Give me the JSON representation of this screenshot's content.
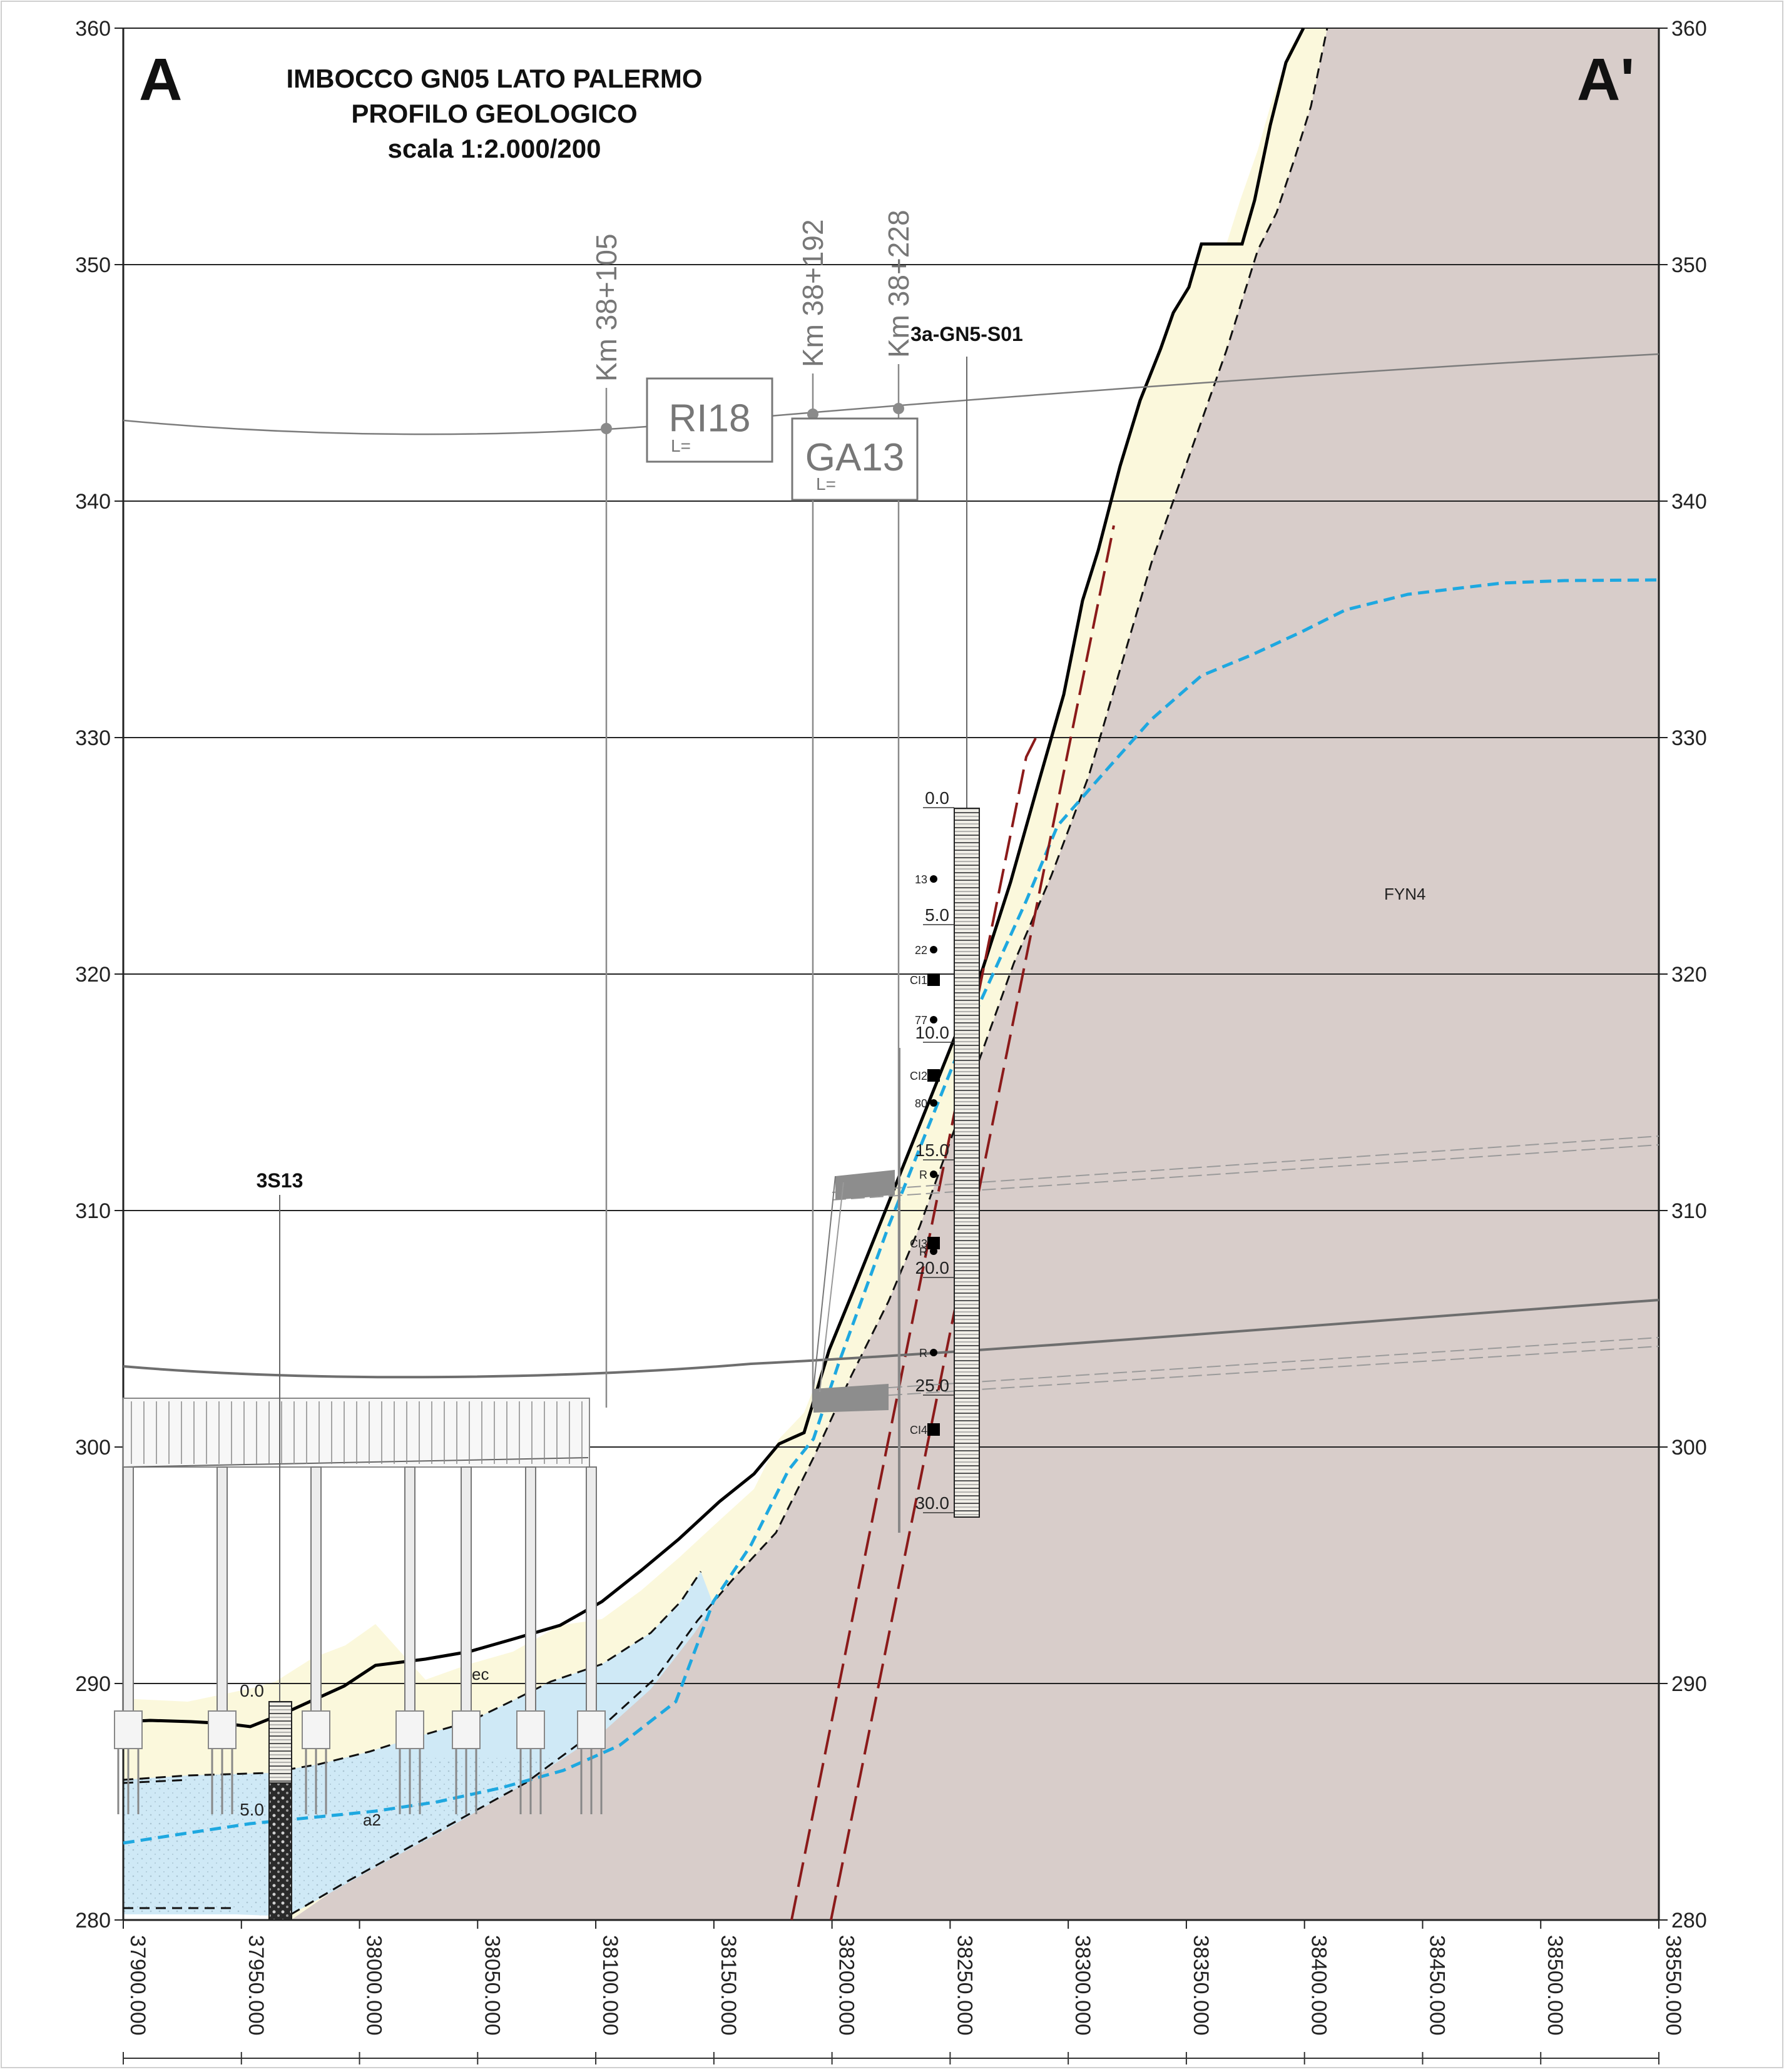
{
  "title": {
    "letter_left": "A",
    "letter_right": "A'",
    "line1": "IMBOCCO GN05 LATO PALERMO",
    "line2": "PROFILO GEOLOGICO",
    "line3": "scala 1:2.000/200"
  },
  "elevation_axis": {
    "labels": [
      "360",
      "350",
      "340",
      "330",
      "320",
      "310",
      "300",
      "290",
      "280"
    ],
    "ylim": [
      280,
      360
    ]
  },
  "chainage_axis": {
    "labels": [
      "37900.000",
      "37950.000",
      "38000.000",
      "38050.000",
      "38100.000",
      "38150.000",
      "38200.000",
      "38250.000",
      "38300.000",
      "38350.000",
      "38400.000",
      "38450.000",
      "38500.000",
      "38550.000"
    ],
    "xlim": [
      37900,
      38550
    ]
  },
  "km_markers": [
    "Km 38+105",
    "Km 38+192",
    "Km 38+228"
  ],
  "structure_boxes": [
    {
      "name": "RI18",
      "sub": "L="
    },
    {
      "name": "GA13",
      "sub": "L="
    }
  ],
  "boreholes": [
    {
      "name": "3S13",
      "depth_labels": [
        "0.0",
        "5.0"
      ]
    },
    {
      "name": "3a-GN5-S01",
      "depth_labels": [
        "0.0",
        "5.0",
        "10.0",
        "15.0",
        "20.0",
        "25.0",
        "30.0"
      ],
      "test_labels": [
        "13",
        "22",
        "CI1",
        "77",
        "CI2",
        "80",
        "R",
        "CI3",
        "R",
        "R",
        "CI4"
      ]
    }
  ],
  "unit_labels": {
    "bedrock": "FYN4",
    "cover": "ec",
    "alluvium": "a2"
  },
  "colors": {
    "bedrock": "#d8cdca",
    "cover": "#fbf8dc",
    "alluvium": "#cfe9f6",
    "water_table": "#1ea8e0",
    "faults": "#8b1a1a",
    "grid": "#222222"
  }
}
